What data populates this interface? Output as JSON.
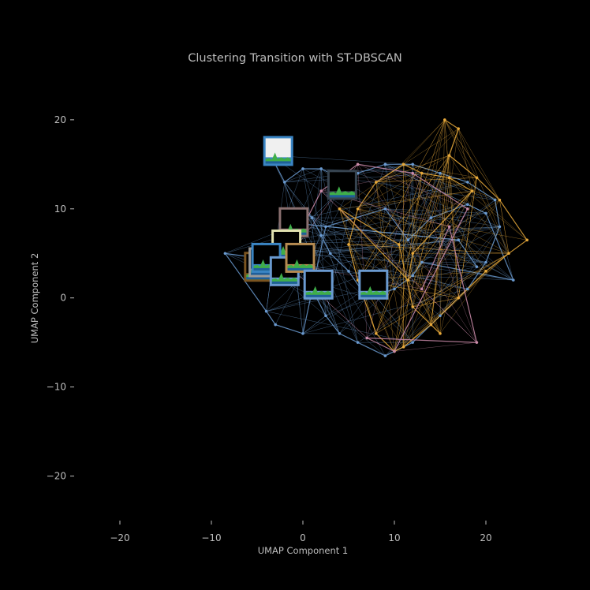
{
  "chart_data": {
    "type": "scatter",
    "title": "Clustering Transition with ST-DBSCAN",
    "xlabel": "UMAP Component 1",
    "ylabel": "UMAP Component 2",
    "xlim": [
      -25,
      25
    ],
    "ylim": [
      -25,
      23
    ],
    "xticks": [
      -20,
      -10,
      0,
      10,
      20
    ],
    "yticks": [
      -20,
      -10,
      0,
      10,
      20
    ],
    "xtick_labels": [
      "−20",
      "−10",
      "0",
      "10",
      "20"
    ],
    "ytick_labels": [
      "−20",
      "−10",
      "0",
      "10",
      "20"
    ],
    "grid": false,
    "background": "#000000",
    "colors": {
      "blue": "#6a9ad0",
      "orange": "#e8a93a",
      "pink": "#c98aa8",
      "green": "#3fae49",
      "thumbnail_sky": "#3a85c4"
    },
    "series": [
      {
        "color": "#6a9ad0",
        "x": [
          -3.5,
          -2.0,
          0.0,
          2.0,
          4.0,
          6.0,
          9.0,
          12.0,
          15.0,
          18.0,
          21.0,
          21.5,
          20.0,
          18.0,
          15.0,
          12.0,
          9.0,
          6.0,
          4.0,
          2.5,
          1.5,
          0.5,
          -1.0,
          -3.0,
          -5.0,
          -8.5,
          -4.0,
          -3.0,
          0.0,
          2.5,
          9.0,
          11.5,
          14.0,
          18.0,
          20.0,
          23.0,
          13.0,
          12.0,
          10.0,
          7.0,
          5.0,
          3.0,
          2.0,
          1.0,
          0.0,
          -2.0,
          17.0,
          19.0
        ],
        "y": [
          16.0,
          13.0,
          14.5,
          14.5,
          13.5,
          14.0,
          15.0,
          15.0,
          14.0,
          13.0,
          11.0,
          8.0,
          4.0,
          1.0,
          -2.0,
          -5.0,
          -6.5,
          -5.0,
          -4.0,
          -2.0,
          0.0,
          3.0,
          5.0,
          6.0,
          4.5,
          5.0,
          -1.5,
          -3.0,
          -4.0,
          8.0,
          10.0,
          6.5,
          9.0,
          10.5,
          9.5,
          2.0,
          4.0,
          2.5,
          1.0,
          0.0,
          3.0,
          5.0,
          7.0,
          9.0,
          10.0,
          8.5,
          6.5,
          3.5
        ]
      },
      {
        "color": "#e8a93a",
        "x": [
          15.5,
          17.0,
          16.0,
          19.0,
          21.5,
          24.5,
          22.5,
          20.0,
          17.0,
          14.0,
          11.0,
          10.0,
          8.0,
          6.0,
          5.0,
          6.0,
          8.0,
          11.0,
          13.0,
          16.0,
          18.5,
          12.0,
          11.5,
          4.0,
          10.5,
          12.0,
          15.0
        ],
        "y": [
          20.0,
          19.0,
          16.0,
          13.5,
          11.0,
          6.5,
          5.0,
          3.0,
          0.0,
          -3.0,
          -5.5,
          -6.0,
          -4.0,
          2.0,
          6.0,
          10.0,
          13.0,
          15.0,
          14.0,
          13.5,
          12.0,
          5.0,
          2.0,
          10.0,
          6.0,
          -1.0,
          -4.0
        ]
      },
      {
        "color": "#c98aa8",
        "x": [
          -2.0,
          2.0,
          6.0,
          12.0,
          18.0,
          10.0,
          7.0,
          19.0,
          16.0,
          13.0
        ],
        "y": [
          4.0,
          12.0,
          15.0,
          14.0,
          10.0,
          -6.0,
          -4.5,
          -5.0,
          8.0,
          1.0
        ]
      }
    ],
    "annotations": [
      {
        "name": "sky-frame-image",
        "x": -2.7,
        "y": 16.5,
        "frame_color": "#3a85c4",
        "inner": "#f0f0f0"
      },
      {
        "name": "dark-frame-image",
        "x": 4.3,
        "y": 12.7,
        "frame_color": "#36434f",
        "inner": "#000000"
      },
      {
        "name": "dark-frame-image",
        "x": -1.0,
        "y": 8.5,
        "frame_color": "#8a7070",
        "inner": "#000000"
      },
      {
        "name": "dark-frame-image",
        "x": -1.8,
        "y": 6.0,
        "frame_color": "#e0e0b0",
        "inner": "#000000"
      },
      {
        "name": "dark-frame-image",
        "x": -4.8,
        "y": 3.5,
        "frame_color": "#7a5420",
        "inner": "#000000"
      },
      {
        "name": "dark-frame-image",
        "x": -4.3,
        "y": 4.0,
        "frame_color": "#9a9a9a",
        "inner": "#000000"
      },
      {
        "name": "dark-frame-image",
        "x": -4.0,
        "y": 4.5,
        "frame_color": "#3a85c4",
        "inner": "#000000"
      },
      {
        "name": "dark-frame-image",
        "x": -2.0,
        "y": 3.0,
        "frame_color": "#6a9ad0",
        "inner": "#000000"
      },
      {
        "name": "dark-frame-image",
        "x": -0.3,
        "y": 4.5,
        "frame_color": "#b58a50",
        "inner": "#000000"
      },
      {
        "name": "dark-frame-image",
        "x": 1.7,
        "y": 1.5,
        "frame_color": "#6a9ad0",
        "inner": "#000000"
      },
      {
        "name": "dark-frame-image",
        "x": 7.7,
        "y": 1.5,
        "frame_color": "#6a9ad0",
        "inner": "#000000"
      }
    ]
  }
}
